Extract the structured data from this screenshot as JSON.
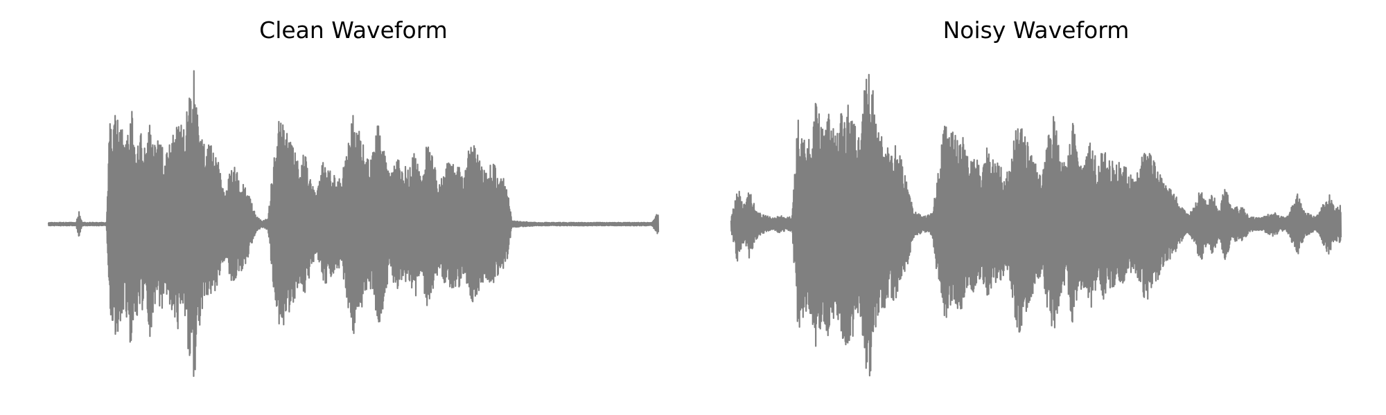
{
  "chart_data": [
    {
      "type": "line",
      "title": "Clean Waveform",
      "axes_visible": false,
      "ylim": [
        -1.0,
        1.0
      ],
      "line_color": "#808080",
      "envelope": {
        "t": [
          0.0,
          0.045,
          0.05,
          0.055,
          0.095,
          0.1,
          0.11,
          0.12,
          0.13,
          0.135,
          0.14,
          0.15,
          0.16,
          0.165,
          0.175,
          0.185,
          0.19,
          0.2,
          0.21,
          0.215,
          0.22,
          0.23,
          0.24,
          0.25,
          0.26,
          0.265,
          0.27,
          0.28,
          0.29,
          0.3,
          0.31,
          0.32,
          0.33,
          0.34,
          0.35,
          0.36,
          0.37,
          0.38,
          0.39,
          0.4,
          0.41,
          0.42,
          0.43,
          0.44,
          0.45,
          0.46,
          0.47,
          0.48,
          0.49,
          0.5,
          0.51,
          0.52,
          0.53,
          0.54,
          0.55,
          0.56,
          0.57,
          0.58,
          0.59,
          0.6,
          0.61,
          0.62,
          0.63,
          0.64,
          0.65,
          0.66,
          0.67,
          0.68,
          0.69,
          0.7,
          0.71,
          0.72,
          0.73,
          0.74,
          0.75,
          0.76,
          0.8,
          0.84,
          0.9,
          0.99,
          1.0
        ],
        "amp": [
          0.01,
          0.01,
          0.08,
          0.01,
          0.01,
          0.65,
          0.72,
          0.62,
          0.58,
          0.8,
          0.55,
          0.6,
          0.45,
          0.76,
          0.5,
          0.58,
          0.4,
          0.52,
          0.62,
          0.72,
          0.55,
          0.82,
          1.0,
          0.55,
          0.48,
          0.52,
          0.45,
          0.38,
          0.2,
          0.4,
          0.32,
          0.28,
          0.18,
          0.05,
          0.02,
          0.04,
          0.45,
          0.72,
          0.6,
          0.52,
          0.4,
          0.45,
          0.3,
          0.2,
          0.4,
          0.35,
          0.3,
          0.28,
          0.5,
          0.7,
          0.58,
          0.45,
          0.4,
          0.7,
          0.5,
          0.3,
          0.42,
          0.38,
          0.35,
          0.5,
          0.3,
          0.52,
          0.45,
          0.28,
          0.38,
          0.4,
          0.42,
          0.35,
          0.48,
          0.5,
          0.38,
          0.35,
          0.4,
          0.3,
          0.28,
          0.02,
          0.01,
          0.01,
          0.01,
          0.01,
          0.08
        ]
      }
    },
    {
      "type": "line",
      "title": "Noisy Waveform",
      "axes_visible": false,
      "ylim": [
        -1.0,
        1.0
      ],
      "line_color": "#808080",
      "envelope": {
        "t": [
          0.0,
          0.01,
          0.02,
          0.03,
          0.04,
          0.05,
          0.06,
          0.07,
          0.08,
          0.09,
          0.1,
          0.11,
          0.12,
          0.13,
          0.14,
          0.15,
          0.16,
          0.17,
          0.18,
          0.19,
          0.2,
          0.21,
          0.22,
          0.23,
          0.24,
          0.25,
          0.26,
          0.27,
          0.28,
          0.29,
          0.3,
          0.31,
          0.32,
          0.33,
          0.34,
          0.35,
          0.36,
          0.37,
          0.38,
          0.39,
          0.4,
          0.41,
          0.42,
          0.43,
          0.44,
          0.45,
          0.46,
          0.47,
          0.48,
          0.49,
          0.5,
          0.51,
          0.52,
          0.53,
          0.54,
          0.55,
          0.56,
          0.57,
          0.58,
          0.59,
          0.6,
          0.61,
          0.62,
          0.63,
          0.64,
          0.65,
          0.66,
          0.67,
          0.68,
          0.69,
          0.7,
          0.71,
          0.72,
          0.73,
          0.74,
          0.75,
          0.76,
          0.77,
          0.78,
          0.79,
          0.8,
          0.81,
          0.82,
          0.83,
          0.84,
          0.85,
          0.86,
          0.87,
          0.88,
          0.89,
          0.9,
          0.91,
          0.92,
          0.93,
          0.94,
          0.95,
          0.96,
          0.97,
          0.98,
          0.99,
          1.0
        ],
        "amp": [
          0.04,
          0.25,
          0.12,
          0.22,
          0.1,
          0.06,
          0.05,
          0.04,
          0.06,
          0.04,
          0.05,
          0.7,
          0.62,
          0.58,
          0.8,
          0.6,
          0.75,
          0.58,
          0.7,
          0.78,
          0.72,
          0.55,
          0.9,
          1.0,
          0.62,
          0.55,
          0.45,
          0.5,
          0.4,
          0.25,
          0.08,
          0.06,
          0.05,
          0.07,
          0.4,
          0.62,
          0.6,
          0.55,
          0.55,
          0.4,
          0.45,
          0.32,
          0.5,
          0.4,
          0.38,
          0.3,
          0.42,
          0.72,
          0.6,
          0.48,
          0.4,
          0.3,
          0.58,
          0.7,
          0.45,
          0.35,
          0.65,
          0.42,
          0.4,
          0.55,
          0.38,
          0.48,
          0.4,
          0.42,
          0.38,
          0.35,
          0.3,
          0.38,
          0.5,
          0.42,
          0.35,
          0.25,
          0.22,
          0.18,
          0.1,
          0.06,
          0.12,
          0.25,
          0.12,
          0.2,
          0.08,
          0.25,
          0.1,
          0.12,
          0.1,
          0.05,
          0.04,
          0.04,
          0.06,
          0.08,
          0.05,
          0.04,
          0.12,
          0.2,
          0.08,
          0.06,
          0.05,
          0.12,
          0.2,
          0.1,
          0.12
        ]
      }
    }
  ]
}
